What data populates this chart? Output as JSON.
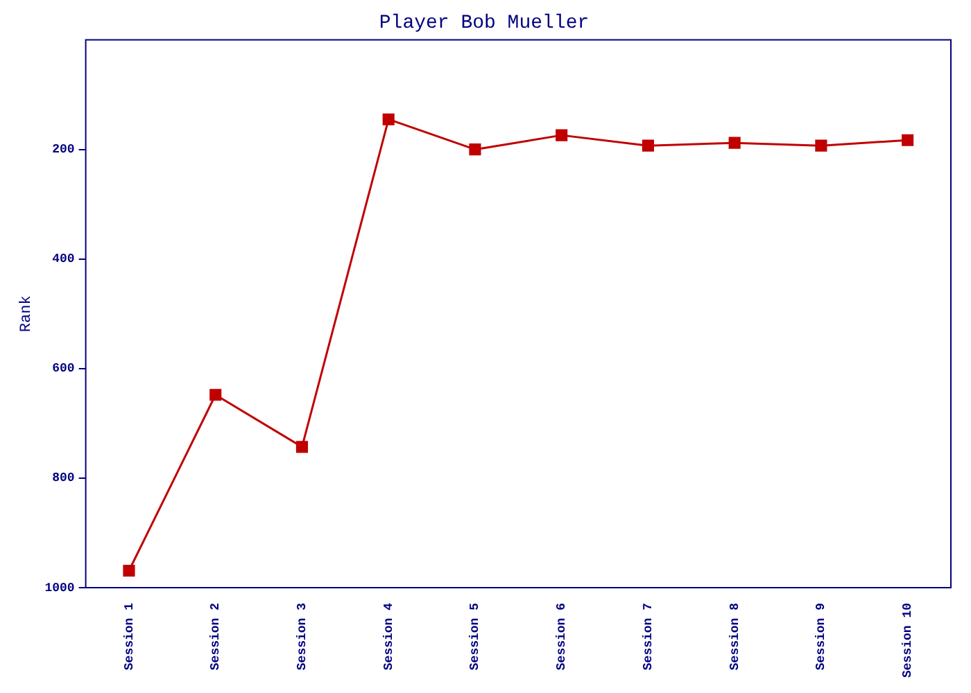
{
  "chart_data": {
    "type": "line",
    "title": "Player Bob Mueller",
    "ylabel": "Rank",
    "categories": [
      "Session 1",
      "Session 2",
      "Session 3",
      "Session 4",
      "Session 5",
      "Session 6",
      "Session 7",
      "Session 8",
      "Session 9",
      "Session 10"
    ],
    "series": [
      {
        "color": "#c00000",
        "values": [
          969,
          648,
          743,
          145,
          200,
          174,
          193,
          188,
          193,
          183
        ]
      }
    ],
    "ylim": [
      1000,
      0
    ],
    "yticks": [
      200,
      400,
      600,
      800,
      1000
    ],
    "grid": false,
    "legend": false,
    "marker": "square",
    "line_style": "solid"
  }
}
